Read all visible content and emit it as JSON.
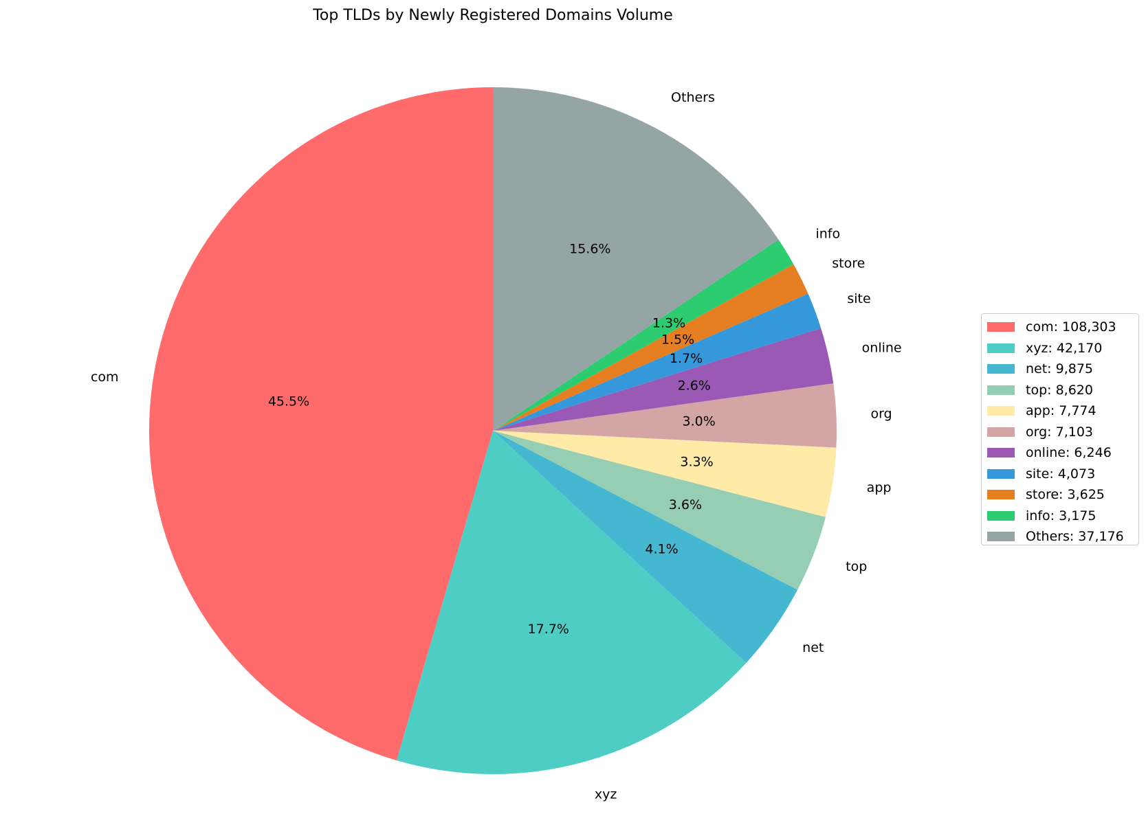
{
  "chart_data": {
    "type": "pie",
    "title": "Top TLDs by Newly Registered Domains Volume",
    "start_angle_deg": 90,
    "direction": "counterclockwise",
    "legend_position": "right",
    "slices": [
      {
        "label": "com",
        "value": 108303,
        "percent": "45.5%",
        "legend": "com: 108,303",
        "color": "#ff6b6b"
      },
      {
        "label": "xyz",
        "value": 42170,
        "percent": "17.7%",
        "legend": "xyz: 42,170",
        "color": "#4ecdc4"
      },
      {
        "label": "net",
        "value": 9875,
        "percent": "4.1%",
        "legend": "net: 9,875",
        "color": "#45b7d1"
      },
      {
        "label": "top",
        "value": 8620,
        "percent": "3.6%",
        "legend": "top: 8,620",
        "color": "#96ceb4"
      },
      {
        "label": "app",
        "value": 7774,
        "percent": "3.3%",
        "legend": "app: 7,774",
        "color": "#ffeaa7"
      },
      {
        "label": "org",
        "value": 7103,
        "percent": "3.0%",
        "legend": "org: 7,103",
        "color": "#d4a5a5"
      },
      {
        "label": "online",
        "value": 6246,
        "percent": "2.6%",
        "legend": "online: 6,246",
        "color": "#9b59b6"
      },
      {
        "label": "site",
        "value": 4073,
        "percent": "1.7%",
        "legend": "site: 4,073",
        "color": "#3498db"
      },
      {
        "label": "store",
        "value": 3625,
        "percent": "1.5%",
        "legend": "store: 3,625",
        "color": "#e67e22"
      },
      {
        "label": "info",
        "value": 3175,
        "percent": "1.3%",
        "legend": "info: 3,175",
        "color": "#2ecc71"
      },
      {
        "label": "Others",
        "value": 37176,
        "percent": "15.6%",
        "legend": "Others: 37,176",
        "color": "#95a5a6"
      }
    ]
  }
}
